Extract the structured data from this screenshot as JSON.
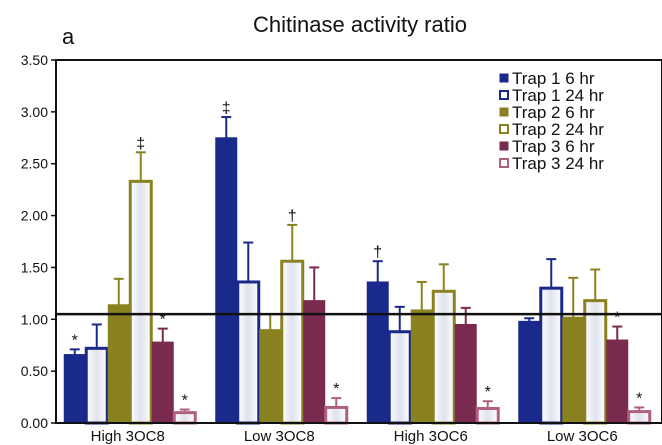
{
  "panel_label": "a",
  "chart_data": {
    "type": "bar",
    "title": "Chitinase activity ratio",
    "xlabel": "",
    "ylabel": "",
    "ylim": [
      0,
      3.5
    ],
    "yticks": [
      "0.00",
      "0.50",
      "1.00",
      "1.50",
      "2.00",
      "2.50",
      "3.00",
      "3.50"
    ],
    "reference_line": 1.05,
    "categories": [
      "High 3OC8",
      "Low 3OC8",
      "High 3OC6",
      "Low 3OC6"
    ],
    "legend_position": "top-right",
    "series": [
      {
        "name": "Trap 1 6 hr",
        "style": "solid",
        "color": "#1a2a8c",
        "values": [
          0.66,
          2.75,
          1.36,
          0.98
        ],
        "errors": [
          0.05,
          0.2,
          0.2,
          0.03
        ],
        "marks": [
          "*",
          "‡",
          "†",
          ""
        ]
      },
      {
        "name": "Trap 1 24 hr",
        "style": "hollow",
        "color": "#1a2a8c",
        "values": [
          0.72,
          1.36,
          0.88,
          1.3
        ],
        "errors": [
          0.23,
          0.38,
          0.24,
          0.28
        ],
        "marks": [
          "",
          "",
          "",
          ""
        ]
      },
      {
        "name": "Trap 2 6 hr",
        "style": "solid",
        "color": "#8a8220",
        "values": [
          1.14,
          0.9,
          1.09,
          1.02
        ],
        "errors": [
          0.25,
          0.15,
          0.27,
          0.38
        ],
        "marks": [
          "",
          "",
          "",
          ""
        ]
      },
      {
        "name": "Trap 2 24 hr",
        "style": "hollow",
        "color": "#8a8220",
        "values": [
          2.33,
          1.56,
          1.27,
          1.18
        ],
        "errors": [
          0.28,
          0.35,
          0.26,
          0.3
        ],
        "marks": [
          "‡",
          "†",
          "",
          ""
        ]
      },
      {
        "name": "Trap 3 6 hr",
        "style": "solid",
        "color": "#7a2a4e",
        "values": [
          0.78,
          1.18,
          0.95,
          0.8
        ],
        "errors": [
          0.13,
          0.32,
          0.16,
          0.13
        ],
        "marks": [
          "*",
          "",
          "",
          "*"
        ]
      },
      {
        "name": "Trap 3 24 hr",
        "style": "hollow",
        "color": "#b0607e",
        "values": [
          0.1,
          0.15,
          0.14,
          0.11
        ],
        "errors": [
          0.03,
          0.09,
          0.07,
          0.04
        ],
        "marks": [
          "*",
          "*",
          "*",
          "*"
        ]
      }
    ]
  }
}
